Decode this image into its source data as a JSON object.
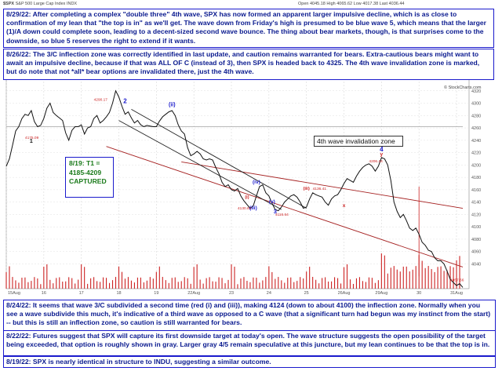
{
  "header": {
    "ticker": "$SPX",
    "name": "S&P 500 Large Cap Index",
    "exchange": "INDX",
    "ohlc": "Open 4045.18  High 4065.62  Low 4017.38  Last 4036.44",
    "source": "© StockCharts.com"
  },
  "notes": {
    "n1": "8/29/22: After completing a complex \"double three\" 4th wave, SPX has now formed an apparent larger impulsive decline, which is as close to confirmation of my lean that \"the top is in\" as we'll get. The wave down from Friday's high is presumed to be blue wave 5, which means that the larger (1)/A down could complete soon, leading to a decent-sized second wave bounce. The thing about bear markets, though, is that surprises come to the downside, so blue 5 reserves the right to extend if it wants.",
    "n2": "8/26/22: The 3/C inflection zone was correctly identified in last update, and caution remains warranted for bears. Extra-cautious bears might want to await an impulsive decline, because if that was ALL OF C (instead of 3), then SPX is headed back to 4325. The 4th wave invalidation zone is marked, but do note that not *all* bear options are invalidated there, just the 4th wave.",
    "n3": "8/24/22: It seems that wave 3/C subdivided a second time (red (i) and (iii)), making 4124 (down to about 4100) the inflection zone. Normally when you see a wave subdivide this much, it's indicative of a third wave as opposed to a C wave (that a significant turn had begun was my instinct from the start) -- but this is still an inflection zone, so caution is still warranted for bears.",
    "n4": "8/22/22: Futures suggest that SPX will capture its first downside target at today's open. The wave structure suggests the open possibility of the target being exceeded, that option is roughly shown in gray. Larger gray 4/5 remain speculative at this juncture, but my lean continues to be that the top is in.",
    "n5": "8/19/22: SPX is nearly identical in structure to INDU, suggesting a similar outcome."
  },
  "target_box": {
    "date": "8/19:",
    "label": "T1 =",
    "range": "4185-4209",
    "status": "CAPTURED"
  },
  "invalidation_label": "4th wave invalidation zone",
  "chart_data": {
    "type": "line",
    "title": "",
    "xlabel": "",
    "ylabel": "",
    "ylim": [
      4000,
      4340
    ],
    "x_ticks": [
      "15Aug",
      "16",
      "17",
      "18",
      "19",
      "22Aug",
      "23",
      "24",
      "25",
      "26Aug",
      "29Aug",
      "30",
      "31Aug"
    ],
    "y_ticks": [
      4040,
      4060,
      4080,
      4100,
      4120,
      4140,
      4160,
      4180,
      4200,
      4220,
      4240,
      4260,
      4280,
      4300,
      4320
    ],
    "price_labels": [
      "4290.17",
      "4175.09",
      "4130.60",
      "4116.64",
      "4136.41",
      "4206.44",
      "4057.66"
    ],
    "wave_labels": [
      {
        "label": "1",
        "color": "#111111"
      },
      {
        "label": "2",
        "color": "#1a1acc"
      },
      {
        "label": "(ii)",
        "color": "#1a1acc"
      },
      {
        "label": "(iii)",
        "color": "#1a1acc"
      },
      {
        "label": "(iv)",
        "color": "#1a1acc"
      },
      {
        "label": "(v)",
        "color": "#1a1acc"
      },
      {
        "label": "3",
        "color": "#1a1acc"
      },
      {
        "label": "4",
        "color": "#1a1acc"
      },
      {
        "label": "y",
        "color": "#cc2222"
      },
      {
        "label": "x",
        "color": "#cc2222"
      },
      {
        "label": "(i)",
        "color": "#cc2222"
      },
      {
        "label": "(iii)",
        "color": "#cc2222"
      }
    ],
    "price_path": [
      [
        0.0,
        4198
      ],
      [
        0.5,
        4210
      ],
      [
        1.0,
        4232
      ],
      [
        1.5,
        4255
      ],
      [
        2.0,
        4262
      ],
      [
        2.5,
        4275
      ],
      [
        3.0,
        4282
      ],
      [
        3.5,
        4280
      ],
      [
        4.0,
        4288
      ],
      [
        4.5,
        4270
      ],
      [
        5.0,
        4262
      ],
      [
        5.5,
        4264
      ],
      [
        6.0,
        4275
      ],
      [
        6.5,
        4292
      ],
      [
        7.0,
        4300
      ],
      [
        7.5,
        4285
      ],
      [
        8.0,
        4280
      ],
      [
        8.5,
        4276
      ],
      [
        9.0,
        4272
      ],
      [
        9.5,
        4252
      ],
      [
        10.0,
        4240
      ],
      [
        10.5,
        4256
      ],
      [
        11.0,
        4262
      ],
      [
        11.5,
        4262
      ],
      [
        12.0,
        4265
      ],
      [
        12.5,
        4250
      ],
      [
        13.0,
        4260
      ],
      [
        13.5,
        4262
      ],
      [
        14.0,
        4275
      ],
      [
        14.5,
        4280
      ],
      [
        15.0,
        4268
      ],
      [
        15.5,
        4272
      ],
      [
        16.0,
        4278
      ],
      [
        16.5,
        4285
      ],
      [
        17.0,
        4300
      ],
      [
        17.5,
        4320
      ],
      [
        18.0,
        4310
      ],
      [
        18.5,
        4295
      ],
      [
        19.0,
        4282
      ],
      [
        19.5,
        4286
      ],
      [
        20.0,
        4276
      ],
      [
        20.5,
        4268
      ],
      [
        21.0,
        4272
      ],
      [
        21.5,
        4265
      ],
      [
        22.0,
        4262
      ],
      [
        22.5,
        4264
      ],
      [
        23.0,
        4263
      ],
      [
        23.5,
        4262
      ],
      [
        24.0,
        4262
      ],
      [
        24.5,
        4271
      ],
      [
        25.0,
        4278
      ],
      [
        25.5,
        4282
      ],
      [
        26.0,
        4286
      ],
      [
        26.5,
        4288
      ],
      [
        27.0,
        4280
      ],
      [
        27.5,
        4265
      ],
      [
        28.0,
        4255
      ],
      [
        28.5,
        4250
      ],
      [
        29.0,
        4228
      ],
      [
        29.5,
        4215
      ],
      [
        30.0,
        4218
      ],
      [
        30.5,
        4222
      ],
      [
        31.0,
        4218
      ],
      [
        31.5,
        4210
      ],
      [
        32.0,
        4208
      ],
      [
        32.5,
        4210
      ],
      [
        33.0,
        4208
      ],
      [
        33.5,
        4196
      ],
      [
        34.0,
        4186
      ],
      [
        34.5,
        4172
      ],
      [
        35.0,
        4165
      ],
      [
        35.5,
        4168
      ],
      [
        36.0,
        4160
      ],
      [
        36.5,
        4158
      ],
      [
        37.0,
        4162
      ],
      [
        37.5,
        4150
      ],
      [
        38.0,
        4142
      ],
      [
        38.5,
        4136
      ],
      [
        39.0,
        4130
      ],
      [
        39.5,
        4134
      ],
      [
        40.0,
        4150
      ],
      [
        40.5,
        4165
      ],
      [
        41.0,
        4168
      ],
      [
        41.5,
        4155
      ],
      [
        42.0,
        4150
      ],
      [
        42.5,
        4138
      ],
      [
        43.0,
        4128
      ],
      [
        43.5,
        4126
      ],
      [
        44.0,
        4132
      ],
      [
        44.5,
        4140
      ],
      [
        45.0,
        4145
      ],
      [
        45.5,
        4150
      ],
      [
        46.0,
        4152
      ],
      [
        46.5,
        4148
      ],
      [
        47.0,
        4140
      ],
      [
        47.5,
        4130
      ],
      [
        48.0,
        4132
      ],
      [
        48.5,
        4145
      ],
      [
        49.0,
        4155
      ],
      [
        49.5,
        4152
      ],
      [
        50.0,
        4150
      ],
      [
        50.5,
        4148
      ],
      [
        51.0,
        4140
      ],
      [
        51.5,
        4135
      ],
      [
        52.0,
        4145
      ],
      [
        52.5,
        4150
      ],
      [
        53.0,
        4152
      ],
      [
        53.5,
        4160
      ],
      [
        54.0,
        4170
      ],
      [
        54.5,
        4178
      ],
      [
        55.0,
        4175
      ],
      [
        55.5,
        4172
      ],
      [
        56.0,
        4182
      ],
      [
        56.5,
        4190
      ],
      [
        57.0,
        4196
      ],
      [
        57.5,
        4200
      ],
      [
        58.0,
        4202
      ],
      [
        58.5,
        4198
      ],
      [
        59.0,
        4190
      ],
      [
        59.5,
        4198
      ],
      [
        60.0,
        4212
      ],
      [
        60.5,
        4210
      ],
      [
        61.0,
        4200
      ],
      [
        61.5,
        4175
      ],
      [
        62.0,
        4140
      ],
      [
        62.5,
        4125
      ],
      [
        63.0,
        4115
      ],
      [
        63.5,
        4120
      ],
      [
        64.0,
        4110
      ],
      [
        64.5,
        4098
      ],
      [
        65.0,
        4094
      ],
      [
        65.5,
        4098
      ],
      [
        66.0,
        4088
      ],
      [
        66.5,
        4075
      ],
      [
        67.0,
        4070
      ],
      [
        67.5,
        4062
      ],
      [
        68.0,
        4060
      ],
      [
        68.5,
        4050
      ],
      [
        69.0,
        4045
      ],
      [
        69.5,
        4045
      ],
      [
        70.0,
        4040
      ],
      [
        70.5,
        4028
      ],
      [
        71.0,
        4015
      ],
      [
        71.5,
        4010
      ],
      [
        72.0,
        4005
      ],
      [
        72.5,
        4008
      ],
      [
        73.0,
        4002
      ]
    ]
  }
}
